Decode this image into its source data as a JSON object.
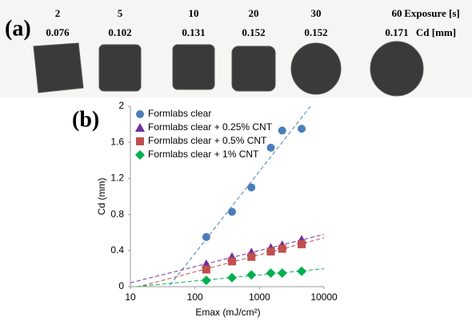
{
  "panel_a": {
    "label": "(a)",
    "exposures": [
      "2",
      "5",
      "10",
      "20",
      "30",
      "60"
    ],
    "exposure_label": "Exposure [s]",
    "cd": [
      "0.076",
      "0.102",
      "0.131",
      "0.152",
      "0.152",
      "0.171"
    ],
    "cd_label": "Cd [mm]"
  },
  "chart_data": {
    "type": "scatter",
    "panel_label": "(b)",
    "x_label": "Emax (mJ/cm²)",
    "y_label": "Cd (mm)",
    "xlog": true,
    "xlim": [
      10,
      10000
    ],
    "xticks": [
      10,
      100,
      1000,
      10000
    ],
    "ylim": [
      0,
      2
    ],
    "yticks": [
      0,
      0.4,
      0.8,
      1.2,
      1.6,
      2
    ],
    "x": [
      150,
      375,
      750,
      1500,
      2250,
      4500
    ],
    "trendline": true,
    "legend": "top-left",
    "series": [
      {
        "name": "Formlabs clear",
        "color": "#4a7ebb",
        "marker": "circle",
        "values": [
          0.55,
          0.83,
          1.1,
          1.54,
          1.73,
          1.75
        ]
      },
      {
        "name": "Formlabs clear + 0.25% CNT",
        "color": "#7030a0",
        "marker": "triangle",
        "values": [
          0.25,
          0.33,
          0.38,
          0.43,
          0.46,
          0.52
        ]
      },
      {
        "name": "Formlabs clear + 0.5% CNT",
        "color": "#c0504d",
        "marker": "square",
        "values": [
          0.19,
          0.28,
          0.33,
          0.39,
          0.42,
          0.47
        ]
      },
      {
        "name": "Formlabs clear + 1% CNT",
        "color": "#00b050",
        "marker": "diamond",
        "values": [
          0.07,
          0.1,
          0.13,
          0.15,
          0.15,
          0.17
        ]
      }
    ]
  }
}
